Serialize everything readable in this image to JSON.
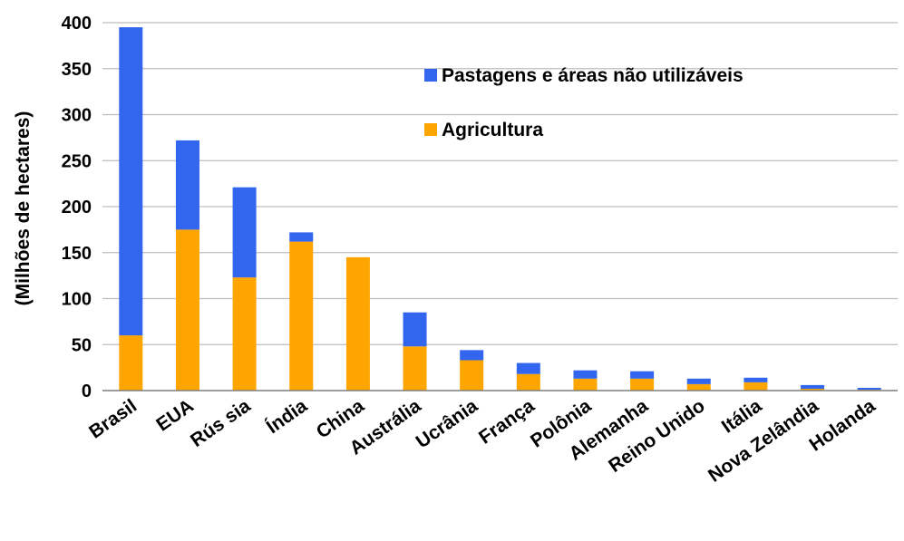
{
  "chart_data": {
    "type": "bar",
    "stacked": true,
    "title": "",
    "xlabel": "",
    "ylabel": "(Milhões de hectares)",
    "ylim": [
      0,
      400
    ],
    "yticks": [
      "0",
      "50",
      "100",
      "150",
      "200",
      "250",
      "300",
      "350",
      "400"
    ],
    "grid": true,
    "legend_position": "top-right",
    "categories": [
      "Brasil",
      "EUA",
      "Rús sia",
      "Índia",
      "China",
      "Austrália",
      "Ucrânia",
      "França",
      "Polônia",
      "Alemanha",
      "Reino Unido",
      "Itália",
      "Nova Zelândia",
      "Holanda"
    ],
    "series": [
      {
        "name": "Agricultura",
        "color": "#ffa500",
        "values": [
          60,
          175,
          123,
          162,
          145,
          48,
          33,
          18,
          13,
          13,
          7,
          9,
          2,
          1
        ]
      },
      {
        "name": "Pastagens e áreas não utilizáveis",
        "color": "#3366ee",
        "values": [
          335,
          97,
          98,
          10,
          0,
          37,
          11,
          12,
          9,
          8,
          6,
          5,
          4,
          2
        ]
      }
    ]
  }
}
